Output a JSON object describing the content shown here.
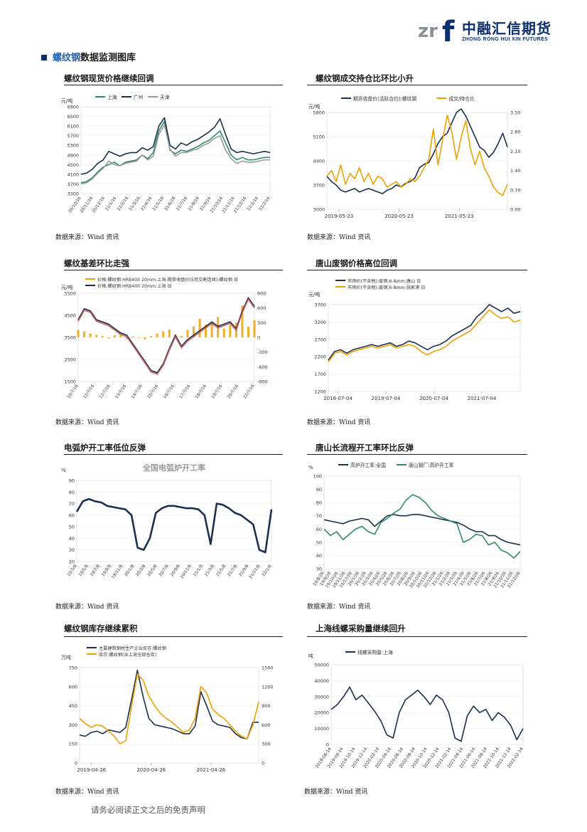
{
  "header": {
    "logo_cn": "中融汇信期货",
    "logo_en": "ZHONG RONG HUI XIN FUTURES",
    "logo_mark": "zrf"
  },
  "section": {
    "title_highlight": "螺纹钢",
    "title_rest": "数据监测图库"
  },
  "panels": [
    {
      "caption": "螺纹钢现货价格继续回调",
      "source": "数据来源：Wind 资讯"
    },
    {
      "caption": "螺纹钢成交持仓比环比小升",
      "source": "数据来源：Wind 资讯"
    },
    {
      "caption": "螺纹基差环比走强",
      "source": "数据来源：Wind 资讯"
    },
    {
      "caption": "唐山废钢价格高位回调",
      "source": "数据来源：Wind 资讯"
    },
    {
      "caption": "电弧炉开工率低位反弹",
      "source": "数据来源：Wind 资讯"
    },
    {
      "caption": "唐山长流程开工率环比反弹",
      "source": "数据来源：Wind 资讯"
    },
    {
      "caption": "螺纹钢库存继续累积",
      "source": "数据来源：Wind 资讯"
    },
    {
      "caption": "上海线螺采购量继续回升",
      "source": "数据来源：Wind 资讯"
    }
  ],
  "footer": "请务必阅读正文之后的免责声明",
  "chart_data": [
    {
      "type": "line",
      "ylabel": "元/吨",
      "legend": "top",
      "ylim": [
        3300,
        6900
      ],
      "yticks": [
        "6900",
        "6500",
        "6100",
        "5700",
        "5300",
        "4900",
        "4500",
        "4100",
        "3700",
        "3300"
      ],
      "xticks": [
        "20/10/16",
        "20/11/16",
        "20/12/16",
        "21/1/16",
        "21/2/16",
        "21/3/16",
        "21/4/16",
        "21/5/16",
        "21/6/16",
        "21/7/16",
        "21/8/16",
        "21/9/16",
        "21/10/16",
        "21/11/16",
        "21/12/16",
        "22/1/16",
        "22/2/16"
      ],
      "series": [
        {
          "name": "上海",
          "color": "#2e8b6e",
          "values": [
            3750,
            3800,
            3950,
            4200,
            4400,
            4500,
            4600,
            4450,
            4600,
            4650,
            4700,
            4900,
            4750,
            5000,
            5900,
            6300,
            5100,
            4950,
            5100,
            5050,
            5150,
            5250,
            5400,
            5500,
            5700,
            5900,
            5400,
            4900,
            4700,
            4800,
            4700,
            4700,
            4750,
            4800,
            4800
          ]
        },
        {
          "name": "广州",
          "color": "#1b2f4e",
          "values": [
            4100,
            4150,
            4300,
            4550,
            4700,
            5050,
            4950,
            4850,
            4950,
            5000,
            5000,
            5200,
            5100,
            5250,
            6100,
            6450,
            5300,
            5150,
            5400,
            5300,
            5450,
            5550,
            5700,
            5850,
            6050,
            6400,
            5750,
            5150,
            5000,
            5050,
            5000,
            4950,
            5000,
            5050,
            5000
          ]
        },
        {
          "name": "天津",
          "color": "#9a9a9a",
          "values": [
            3700,
            3750,
            3900,
            4150,
            4350,
            4650,
            4500,
            4450,
            4550,
            4600,
            4650,
            4900,
            4700,
            4850,
            5750,
            6150,
            5150,
            4850,
            5000,
            5000,
            5100,
            5150,
            5300,
            5400,
            5600,
            5700,
            5100,
            4750,
            4550,
            4650,
            4600,
            4600,
            4650,
            4700,
            4700
          ]
        }
      ]
    },
    {
      "type": "line",
      "ylabel": "元/吨",
      "legend": "top",
      "ylim": [
        3000,
        5800
      ],
      "y2lim": [
        0,
        3.5
      ],
      "yticks": [
        "5800",
        "5100",
        "4400",
        "3700",
        "3000"
      ],
      "y2ticks": [
        "3.50",
        "2.80",
        "2.10",
        "1.40",
        "0.70",
        "0.00"
      ],
      "xticks": [
        "2019-05-23",
        "2020-05-23",
        "2021-05-23"
      ],
      "series": [
        {
          "name": "期货收盘价(活跃合约):螺纹钢",
          "color": "#1b2f4e",
          "values": [
            3950,
            3800,
            3700,
            3550,
            3500,
            3550,
            3600,
            3500,
            3550,
            3600,
            3550,
            3500,
            3450,
            3550,
            3600,
            3700,
            3650,
            3750,
            3800,
            3900,
            4200,
            4300,
            4350,
            4600,
            4900,
            5100,
            5200,
            5500,
            5800,
            5900,
            5700,
            5400,
            5100,
            4800,
            4700,
            4500,
            4650,
            4900,
            5200,
            4800
          ]
        },
        {
          "name": "成交/持仓比",
          "color": "#f0a000",
          "values": [
            1.2,
            1.4,
            1.0,
            1.6,
            0.9,
            1.3,
            1.1,
            1.5,
            1.0,
            1.3,
            0.9,
            1.2,
            1.1,
            0.8,
            0.9,
            1.0,
            0.8,
            0.9,
            1.1,
            1.0,
            1.2,
            1.5,
            1.8,
            2.9,
            1.6,
            2.5,
            3.4,
            2.8,
            1.8,
            2.6,
            3.2,
            2.2,
            1.6,
            2.1,
            1.5,
            1.2,
            0.8,
            0.6,
            0.5,
            0.9
          ]
        }
      ]
    },
    {
      "type": "line",
      "ylabel": "元/吨",
      "legend": "top",
      "ylim": [
        1500,
        5500
      ],
      "y2lim": [
        -900,
        900
      ],
      "yticks": [
        "5500",
        "4500",
        "3500",
        "2500",
        "1500"
      ],
      "y2ticks": [
        "900",
        "600",
        "300",
        "0",
        "-300",
        "-600",
        "-900"
      ],
      "xticks": [
        "10/7/16",
        "11/7/16",
        "12/7/16",
        "13/7/16",
        "14/7/16",
        "15/7/16",
        "16/7/16",
        "17/7/16",
        "18/7/16",
        "19/7/16",
        "20/7/16",
        "21/7/16"
      ],
      "series": [
        {
          "name": "价格:螺纹钢:HRB400 20mm:上海-期货收盘价(5月交割连续):螺纹钢 日",
          "color": "#f0a000",
          "values": [
            150,
            120,
            80,
            50,
            30,
            -20,
            40,
            60,
            -30,
            20,
            -10,
            -40,
            30,
            80,
            120,
            160,
            60,
            30,
            150,
            220,
            380,
            260,
            300,
            420,
            180,
            250,
            300,
            650,
            220,
            350
          ]
        },
        {
          "name": "价格:螺纹钢:HRB400 20mm:上海 日",
          "color": "#1b2f4e",
          "values": [
            4300,
            4800,
            4700,
            4300,
            4200,
            4100,
            3900,
            3700,
            3600,
            3200,
            2800,
            2400,
            2000,
            1900,
            2300,
            3000,
            3600,
            3100,
            3400,
            3600,
            3800,
            4000,
            4200,
            4000,
            4100,
            4200,
            3900,
            4700,
            5300,
            4900
          ]
        }
      ]
    },
    {
      "type": "line",
      "ylabel": "元/吨",
      "legend": "top",
      "ylim": [
        1200,
        3700
      ],
      "yticks": [
        "3700",
        "3200",
        "2700",
        "2200",
        "1700",
        "1200"
      ],
      "xticks": [
        "2018-07-04",
        "2019-07-04",
        "2020-07-04",
        "2021-07-04"
      ],
      "series": [
        {
          "name": "市场价(不含税):废钢:6-8mm:唐山 日",
          "color": "#1b2f4e",
          "values": [
            2100,
            2350,
            2400,
            2300,
            2400,
            2450,
            2500,
            2550,
            2500,
            2550,
            2600,
            2500,
            2550,
            2650,
            2600,
            2500,
            2400,
            2500,
            2550,
            2650,
            2800,
            2900,
            3000,
            3100,
            3350,
            3500,
            3700,
            3600,
            3500,
            3600,
            3450,
            3500
          ]
        },
        {
          "name": "市场价(不含税):废钢:6-8mm:张家港 日",
          "color": "#f0a000",
          "values": [
            2050,
            2300,
            2350,
            2250,
            2350,
            2400,
            2450,
            2500,
            2450,
            2500,
            2550,
            2450,
            2500,
            2550,
            2500,
            2350,
            2250,
            2350,
            2400,
            2500,
            2650,
            2750,
            2850,
            2950,
            3150,
            3350,
            3550,
            3400,
            3300,
            3350,
            3200,
            3250
          ]
        }
      ]
    },
    {
      "type": "line",
      "title": "全国电弧炉开工率",
      "ylabel": "%",
      "ylim": [
        20,
        90
      ],
      "yticks": [
        "90",
        "80",
        "70",
        "60",
        "50",
        "40",
        "30",
        "20"
      ],
      "xticks": [
        "19/3/8",
        "19/5/8",
        "19/7/8",
        "19/9/8",
        "19/11/8",
        "20/1/8",
        "20/3/8",
        "20/5/8",
        "20/7/8",
        "20/9/8",
        "20/11/8",
        "21/1/8",
        "21/3/8",
        "21/5/8",
        "21/7/8",
        "21/9/8",
        "21/11/8",
        "22/1/8"
      ],
      "series": [
        {
          "name": "全国电弧炉开工率",
          "color": "#1b2f4e",
          "values": [
            63,
            72,
            74,
            72,
            71,
            68,
            67,
            66,
            65,
            60,
            32,
            30,
            40,
            62,
            66,
            68,
            68,
            67,
            66,
            66,
            65,
            60,
            35,
            70,
            69,
            66,
            62,
            60,
            56,
            52,
            30,
            28,
            65
          ]
        }
      ]
    },
    {
      "type": "line",
      "ylabel": "%",
      "legend": "top",
      "ylim": [
        30,
        100
      ],
      "yticks": [
        "100",
        "90",
        "80",
        "70",
        "60",
        "50",
        "40",
        "30"
      ],
      "xticks": [
        "19/8/26",
        "19/9/26",
        "19/10/26",
        "19/11/26",
        "19/12/26",
        "20/1/26",
        "20/2/26",
        "20/3/26",
        "20/4/26",
        "20/5/26",
        "20/6/26",
        "20/7/26",
        "20/8/26",
        "20/9/26",
        "20/10/26",
        "20/11/26",
        "20/12/26",
        "21/1/26",
        "21/2/26",
        "21/3/26",
        "21/4/26",
        "21/5/26",
        "21/6/26",
        "21/7/26",
        "21/8/26",
        "21/9/26",
        "21/10/26",
        "21/11/26",
        "21/12/26"
      ],
      "series": [
        {
          "name": "高炉开工率:全国",
          "color": "#1b2f4e",
          "values": [
            67,
            66,
            65,
            64,
            66,
            67,
            68,
            67,
            62,
            66,
            70,
            71,
            70,
            70,
            71,
            71,
            70,
            69,
            68,
            67,
            66,
            65,
            63,
            60,
            58,
            58,
            55,
            55,
            52,
            50,
            49,
            48
          ]
        },
        {
          "name": "唐山钢厂:高炉开工率",
          "color": "#2e8b6e",
          "values": [
            60,
            55,
            58,
            52,
            56,
            60,
            62,
            58,
            56,
            65,
            68,
            72,
            75,
            82,
            86,
            84,
            80,
            74,
            70,
            68,
            66,
            64,
            50,
            52,
            56,
            55,
            48,
            50,
            44,
            42,
            38,
            43
          ]
        }
      ]
    },
    {
      "type": "line",
      "ylabel": "万吨",
      "legend": "top",
      "ylim": [
        0,
        750
      ],
      "y2lim": [
        0,
        1500
      ],
      "yticks": [
        "750",
        "600",
        "450",
        "300",
        "150",
        "0"
      ],
      "y2ticks": [
        "1500",
        "1200",
        "900",
        "600",
        "300",
        "0"
      ],
      "xticks": [
        "2019-04-26",
        "2020-04-26",
        "2021-04-26"
      ],
      "series": [
        {
          "name": "主要建筑钢材生产企业库存:螺纹钢",
          "color": "#1b2f4e",
          "values": [
            220,
            210,
            240,
            250,
            230,
            260,
            250,
            240,
            280,
            500,
            730,
            520,
            350,
            300,
            290,
            280,
            270,
            250,
            230,
            230,
            290,
            560,
            450,
            330,
            300,
            290,
            280,
            230,
            200,
            190,
            320,
            320
          ]
        },
        {
          "name": "库存:螺纹钢(含上海全部仓库)",
          "color": "#f0a000",
          "values": [
            700,
            620,
            560,
            600,
            580,
            500,
            420,
            300,
            350,
            900,
            1400,
            1300,
            1050,
            900,
            780,
            700,
            640,
            560,
            480,
            520,
            700,
            1200,
            1100,
            850,
            760,
            700,
            600,
            500,
            420,
            380,
            600,
            960
          ]
        }
      ]
    },
    {
      "type": "line",
      "ylabel": "吨",
      "legend": "top",
      "ylim": [
        0,
        50000
      ],
      "yticks": [
        "50000",
        "40000",
        "30000",
        "20000",
        "10000",
        "0"
      ],
      "xticks": [
        "2019-06-14",
        "2019-08-14",
        "2019-10-14",
        "2019-12-14",
        "2020-02-14",
        "2020-04-14",
        "2020-06-14",
        "2020-08-14",
        "2020-10-14",
        "2020-12-14",
        "2021-02-14",
        "2021-04-14",
        "2021-06-14",
        "2021-08-14",
        "2021-10-14",
        "2021-12-14",
        "2022-02-14"
      ],
      "series": [
        {
          "name": "线螺采购量:上海",
          "color": "#1b2f4e",
          "values": [
            22000,
            25000,
            30000,
            36000,
            28000,
            31000,
            26000,
            21000,
            15000,
            6000,
            4000,
            20000,
            28000,
            31000,
            34000,
            30000,
            25000,
            31000,
            28000,
            20000,
            4000,
            2000,
            18000,
            24000,
            20000,
            22000,
            15000,
            20000,
            17000,
            12000,
            3000,
            10000
          ]
        }
      ]
    }
  ]
}
